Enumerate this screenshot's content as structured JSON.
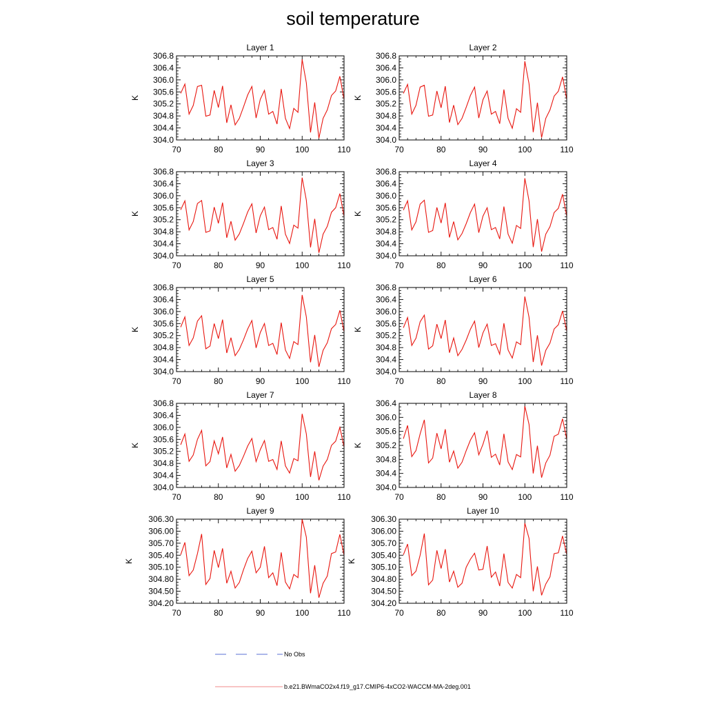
{
  "title": "soil temperature",
  "line_color": "#e8150e",
  "legend": {
    "obs_label": "No Obs",
    "obs_color": "#5a6fd6",
    "model_label": "b.e21.BWmaCO2x4.f19_g17.CMIP6-4xCO2-WACCM-MA-2deg.001",
    "model_color": "#f08a8a"
  },
  "chart_data": [
    {
      "type": "line",
      "title": "Layer 1",
      "ylabel": "K",
      "xlim": [
        70,
        110
      ],
      "ylim": [
        304.0,
        306.8
      ],
      "xticks": [
        "70",
        "80",
        "90",
        "100",
        "110"
      ],
      "yticks": [
        "304.0",
        "304.4",
        "304.8",
        "305.2",
        "305.6",
        "306.0",
        "306.4",
        "306.8"
      ],
      "x": [
        71,
        72,
        73,
        74,
        75,
        76,
        77,
        78,
        79,
        80,
        81,
        82,
        83,
        84,
        85,
        86,
        87,
        88,
        89,
        90,
        91,
        92,
        93,
        94,
        95,
        96,
        97,
        98,
        99,
        100,
        101,
        102,
        103,
        104,
        105,
        106,
        107,
        108,
        109,
        110
      ],
      "y": [
        305.55,
        305.86,
        304.86,
        305.15,
        305.78,
        305.82,
        304.79,
        304.83,
        305.65,
        305.08,
        305.8,
        304.57,
        305.17,
        304.5,
        304.72,
        305.1,
        305.5,
        305.78,
        304.73,
        305.35,
        305.65,
        304.86,
        304.95,
        304.53,
        305.7,
        304.72,
        304.38,
        305.05,
        304.92,
        306.68,
        305.9,
        304.25,
        305.25,
        304.06,
        304.72,
        305.0,
        305.48,
        305.63,
        306.12,
        305.35
      ]
    },
    {
      "type": "line",
      "title": "Layer 2",
      "ylabel": "K",
      "xlim": [
        70,
        110
      ],
      "ylim": [
        304.0,
        306.8
      ],
      "xticks": [
        "70",
        "80",
        "90",
        "100",
        "110"
      ],
      "yticks": [
        "304.0",
        "304.4",
        "304.8",
        "305.2",
        "305.6",
        "306.0",
        "306.4",
        "306.8"
      ],
      "x": [
        71,
        72,
        73,
        74,
        75,
        76,
        77,
        78,
        79,
        80,
        81,
        82,
        83,
        84,
        85,
        86,
        87,
        88,
        89,
        90,
        91,
        92,
        93,
        94,
        95,
        96,
        97,
        98,
        99,
        100,
        101,
        102,
        103,
        104,
        105,
        106,
        107,
        108,
        109,
        110
      ],
      "y": [
        305.55,
        305.85,
        304.86,
        305.15,
        305.76,
        305.82,
        304.79,
        304.83,
        305.63,
        305.07,
        305.79,
        304.58,
        305.16,
        304.51,
        304.72,
        305.09,
        305.48,
        305.76,
        304.73,
        305.34,
        305.63,
        304.86,
        304.95,
        304.54,
        305.68,
        304.72,
        304.39,
        305.04,
        304.92,
        306.62,
        305.87,
        304.26,
        305.24,
        304.08,
        304.72,
        305.0,
        305.46,
        305.62,
        306.1,
        305.35
      ]
    },
    {
      "type": "line",
      "title": "Layer 3",
      "ylabel": "K",
      "xlim": [
        70,
        110
      ],
      "ylim": [
        304.0,
        306.8
      ],
      "xticks": [
        "70",
        "80",
        "90",
        "100",
        "110"
      ],
      "yticks": [
        "304.0",
        "304.4",
        "304.8",
        "305.2",
        "305.6",
        "306.0",
        "306.4",
        "306.8"
      ],
      "x": [
        71,
        72,
        73,
        74,
        75,
        76,
        77,
        78,
        79,
        80,
        81,
        82,
        83,
        84,
        85,
        86,
        87,
        88,
        89,
        90,
        91,
        92,
        93,
        94,
        95,
        96,
        97,
        98,
        99,
        100,
        101,
        102,
        103,
        104,
        105,
        106,
        107,
        108,
        109,
        110
      ],
      "y": [
        305.53,
        305.83,
        304.86,
        305.14,
        305.74,
        305.84,
        304.78,
        304.83,
        305.62,
        305.08,
        305.77,
        304.6,
        305.15,
        304.52,
        304.73,
        305.08,
        305.46,
        305.73,
        304.76,
        305.33,
        305.62,
        304.87,
        304.94,
        304.55,
        305.66,
        304.72,
        304.41,
        305.02,
        304.92,
        306.6,
        305.85,
        304.28,
        305.23,
        304.1,
        304.72,
        304.98,
        305.45,
        305.6,
        306.07,
        305.32
      ]
    },
    {
      "type": "line",
      "title": "Layer 4",
      "ylabel": "K",
      "xlim": [
        70,
        110
      ],
      "ylim": [
        304.0,
        306.8
      ],
      "xticks": [
        "70",
        "80",
        "90",
        "100",
        "110"
      ],
      "yticks": [
        "304.0",
        "304.4",
        "304.8",
        "305.2",
        "305.6",
        "306.0",
        "306.4",
        "306.8"
      ],
      "x": [
        71,
        72,
        73,
        74,
        75,
        76,
        77,
        78,
        79,
        80,
        81,
        82,
        83,
        84,
        85,
        86,
        87,
        88,
        89,
        90,
        91,
        92,
        93,
        94,
        95,
        96,
        97,
        98,
        99,
        100,
        101,
        102,
        103,
        104,
        105,
        106,
        107,
        108,
        109,
        110
      ],
      "y": [
        305.52,
        305.83,
        304.86,
        305.13,
        305.72,
        305.85,
        304.78,
        304.84,
        305.61,
        305.09,
        305.76,
        304.61,
        305.14,
        304.53,
        304.74,
        305.07,
        305.44,
        305.72,
        304.77,
        305.32,
        305.6,
        304.87,
        304.94,
        304.56,
        305.64,
        304.72,
        304.42,
        305.01,
        304.91,
        306.58,
        305.83,
        304.29,
        305.22,
        304.14,
        304.72,
        304.97,
        305.44,
        305.58,
        306.05,
        305.32
      ]
    },
    {
      "type": "line",
      "title": "Layer 5",
      "ylabel": "K",
      "xlim": [
        70,
        110
      ],
      "ylim": [
        304.0,
        306.8
      ],
      "xticks": [
        "70",
        "80",
        "90",
        "100",
        "110"
      ],
      "yticks": [
        "304.0",
        "304.4",
        "304.8",
        "305.2",
        "305.6",
        "306.0",
        "306.4",
        "306.8"
      ],
      "x": [
        71,
        72,
        73,
        74,
        75,
        76,
        77,
        78,
        79,
        80,
        81,
        82,
        83,
        84,
        85,
        86,
        87,
        88,
        89,
        90,
        91,
        92,
        93,
        94,
        95,
        96,
        97,
        98,
        99,
        100,
        101,
        102,
        103,
        104,
        105,
        106,
        107,
        108,
        109,
        110
      ],
      "y": [
        305.48,
        305.82,
        304.87,
        305.12,
        305.68,
        305.86,
        304.76,
        304.85,
        305.6,
        305.1,
        305.73,
        304.62,
        305.13,
        304.53,
        304.74,
        305.06,
        305.42,
        305.7,
        304.79,
        305.3,
        305.6,
        304.87,
        304.94,
        304.57,
        305.63,
        304.72,
        304.44,
        305.0,
        304.9,
        306.55,
        305.82,
        304.31,
        305.22,
        304.16,
        304.71,
        304.96,
        305.43,
        305.57,
        306.04,
        305.33
      ]
    },
    {
      "type": "line",
      "title": "Layer 6",
      "ylabel": "K",
      "xlim": [
        70,
        110
      ],
      "ylim": [
        304.0,
        306.8
      ],
      "xticks": [
        "70",
        "80",
        "90",
        "100",
        "110"
      ],
      "yticks": [
        "304.0",
        "304.4",
        "304.8",
        "305.2",
        "305.6",
        "306.0",
        "306.4",
        "306.8"
      ],
      "x": [
        71,
        72,
        73,
        74,
        75,
        76,
        77,
        78,
        79,
        80,
        81,
        82,
        83,
        84,
        85,
        86,
        87,
        88,
        89,
        90,
        91,
        92,
        93,
        94,
        95,
        96,
        97,
        98,
        99,
        100,
        101,
        102,
        103,
        104,
        105,
        106,
        107,
        108,
        109,
        110
      ],
      "y": [
        305.46,
        305.8,
        304.87,
        305.11,
        305.66,
        305.88,
        304.75,
        304.86,
        305.58,
        305.1,
        305.72,
        304.63,
        305.12,
        304.53,
        304.74,
        305.05,
        305.41,
        305.68,
        304.8,
        305.29,
        305.58,
        304.87,
        304.93,
        304.58,
        305.61,
        304.72,
        304.45,
        304.99,
        304.9,
        306.5,
        305.81,
        304.32,
        305.21,
        304.2,
        304.71,
        304.95,
        305.42,
        305.56,
        306.02,
        305.35
      ]
    },
    {
      "type": "line",
      "title": "Layer 7",
      "ylabel": "K",
      "xlim": [
        70,
        110
      ],
      "ylim": [
        304.0,
        306.8
      ],
      "xticks": [
        "70",
        "80",
        "90",
        "100",
        "110"
      ],
      "yticks": [
        "304.0",
        "304.4",
        "304.8",
        "305.2",
        "305.6",
        "306.0",
        "306.4",
        "306.8"
      ],
      "x": [
        71,
        72,
        73,
        74,
        75,
        76,
        77,
        78,
        79,
        80,
        81,
        82,
        83,
        84,
        85,
        86,
        87,
        88,
        89,
        90,
        91,
        92,
        93,
        94,
        95,
        96,
        97,
        98,
        99,
        100,
        101,
        102,
        103,
        104,
        105,
        106,
        107,
        108,
        109,
        110
      ],
      "y": [
        305.42,
        305.78,
        304.87,
        305.08,
        305.6,
        305.9,
        304.72,
        304.86,
        305.55,
        305.12,
        305.68,
        304.65,
        305.1,
        304.54,
        304.73,
        305.04,
        305.38,
        305.63,
        304.86,
        305.26,
        305.56,
        304.87,
        304.93,
        304.6,
        305.55,
        304.72,
        304.48,
        304.96,
        304.89,
        306.45,
        305.78,
        304.35,
        305.2,
        304.24,
        304.71,
        304.93,
        305.4,
        305.54,
        306.0,
        305.35
      ]
    },
    {
      "type": "line",
      "title": "Layer 8",
      "ylabel": "K",
      "xlim": [
        70,
        110
      ],
      "ylim": [
        304.0,
        306.4
      ],
      "xticks": [
        "70",
        "80",
        "90",
        "100",
        "110"
      ],
      "yticks": [
        "304.0",
        "304.4",
        "304.8",
        "305.2",
        "305.6",
        "306.0",
        "306.4"
      ],
      "x": [
        71,
        72,
        73,
        74,
        75,
        76,
        77,
        78,
        79,
        80,
        81,
        82,
        83,
        84,
        85,
        86,
        87,
        88,
        89,
        90,
        91,
        92,
        93,
        94,
        95,
        96,
        97,
        98,
        99,
        100,
        101,
        102,
        103,
        104,
        105,
        106,
        107,
        108,
        109,
        110
      ],
      "y": [
        305.39,
        305.77,
        304.88,
        305.05,
        305.53,
        305.93,
        304.7,
        304.84,
        305.55,
        305.1,
        305.66,
        304.72,
        305.04,
        304.55,
        304.72,
        305.05,
        305.35,
        305.56,
        304.93,
        305.23,
        305.62,
        304.86,
        304.95,
        304.64,
        305.53,
        304.73,
        304.51,
        304.94,
        304.87,
        306.32,
        305.8,
        304.4,
        305.19,
        304.28,
        304.7,
        304.92,
        305.46,
        305.52,
        305.96,
        305.38
      ]
    },
    {
      "type": "line",
      "title": "Layer 9",
      "ylabel": "K",
      "xlim": [
        70,
        110
      ],
      "ylim": [
        304.2,
        306.3
      ],
      "xticks": [
        "70",
        "80",
        "90",
        "100",
        "110"
      ],
      "yticks": [
        "304.20",
        "304.50",
        "304.80",
        "305.10",
        "305.40",
        "305.70",
        "306.00",
        "306.30"
      ],
      "x": [
        71,
        72,
        73,
        74,
        75,
        76,
        77,
        78,
        79,
        80,
        81,
        82,
        83,
        84,
        85,
        86,
        87,
        88,
        89,
        90,
        91,
        92,
        93,
        94,
        95,
        96,
        97,
        98,
        99,
        100,
        101,
        102,
        103,
        104,
        105,
        106,
        107,
        108,
        109,
        110
      ],
      "y": [
        305.41,
        305.72,
        304.89,
        305.03,
        305.44,
        305.93,
        304.67,
        304.82,
        305.52,
        305.09,
        305.57,
        304.7,
        305.0,
        304.58,
        304.72,
        305.04,
        305.32,
        305.5,
        304.96,
        305.1,
        305.62,
        304.84,
        304.96,
        304.64,
        305.47,
        304.73,
        304.56,
        304.92,
        304.84,
        306.3,
        305.85,
        304.45,
        305.15,
        304.34,
        304.7,
        304.88,
        305.44,
        305.48,
        305.92,
        305.4
      ]
    },
    {
      "type": "line",
      "title": "Layer 10",
      "ylabel": "K",
      "xlim": [
        70,
        110
      ],
      "ylim": [
        304.2,
        306.3
      ],
      "xticks": [
        "70",
        "80",
        "90",
        "100",
        "110"
      ],
      "yticks": [
        "304.20",
        "304.50",
        "304.80",
        "305.10",
        "305.40",
        "305.70",
        "306.00",
        "306.30"
      ],
      "x": [
        71,
        72,
        73,
        74,
        75,
        76,
        77,
        78,
        79,
        80,
        81,
        82,
        83,
        84,
        85,
        86,
        87,
        88,
        89,
        90,
        91,
        92,
        93,
        94,
        95,
        96,
        97,
        98,
        99,
        100,
        101,
        102,
        103,
        104,
        105,
        106,
        107,
        108,
        109,
        110
      ],
      "y": [
        305.41,
        305.68,
        304.89,
        305.0,
        305.4,
        305.94,
        304.66,
        304.78,
        305.52,
        305.07,
        305.55,
        304.73,
        305.0,
        304.6,
        304.7,
        305.1,
        305.3,
        305.45,
        305.03,
        305.05,
        305.63,
        304.85,
        304.98,
        304.63,
        305.44,
        304.72,
        304.58,
        304.92,
        304.84,
        306.2,
        305.82,
        304.5,
        305.12,
        304.4,
        304.68,
        304.86,
        305.44,
        305.46,
        305.88,
        305.42
      ]
    }
  ]
}
